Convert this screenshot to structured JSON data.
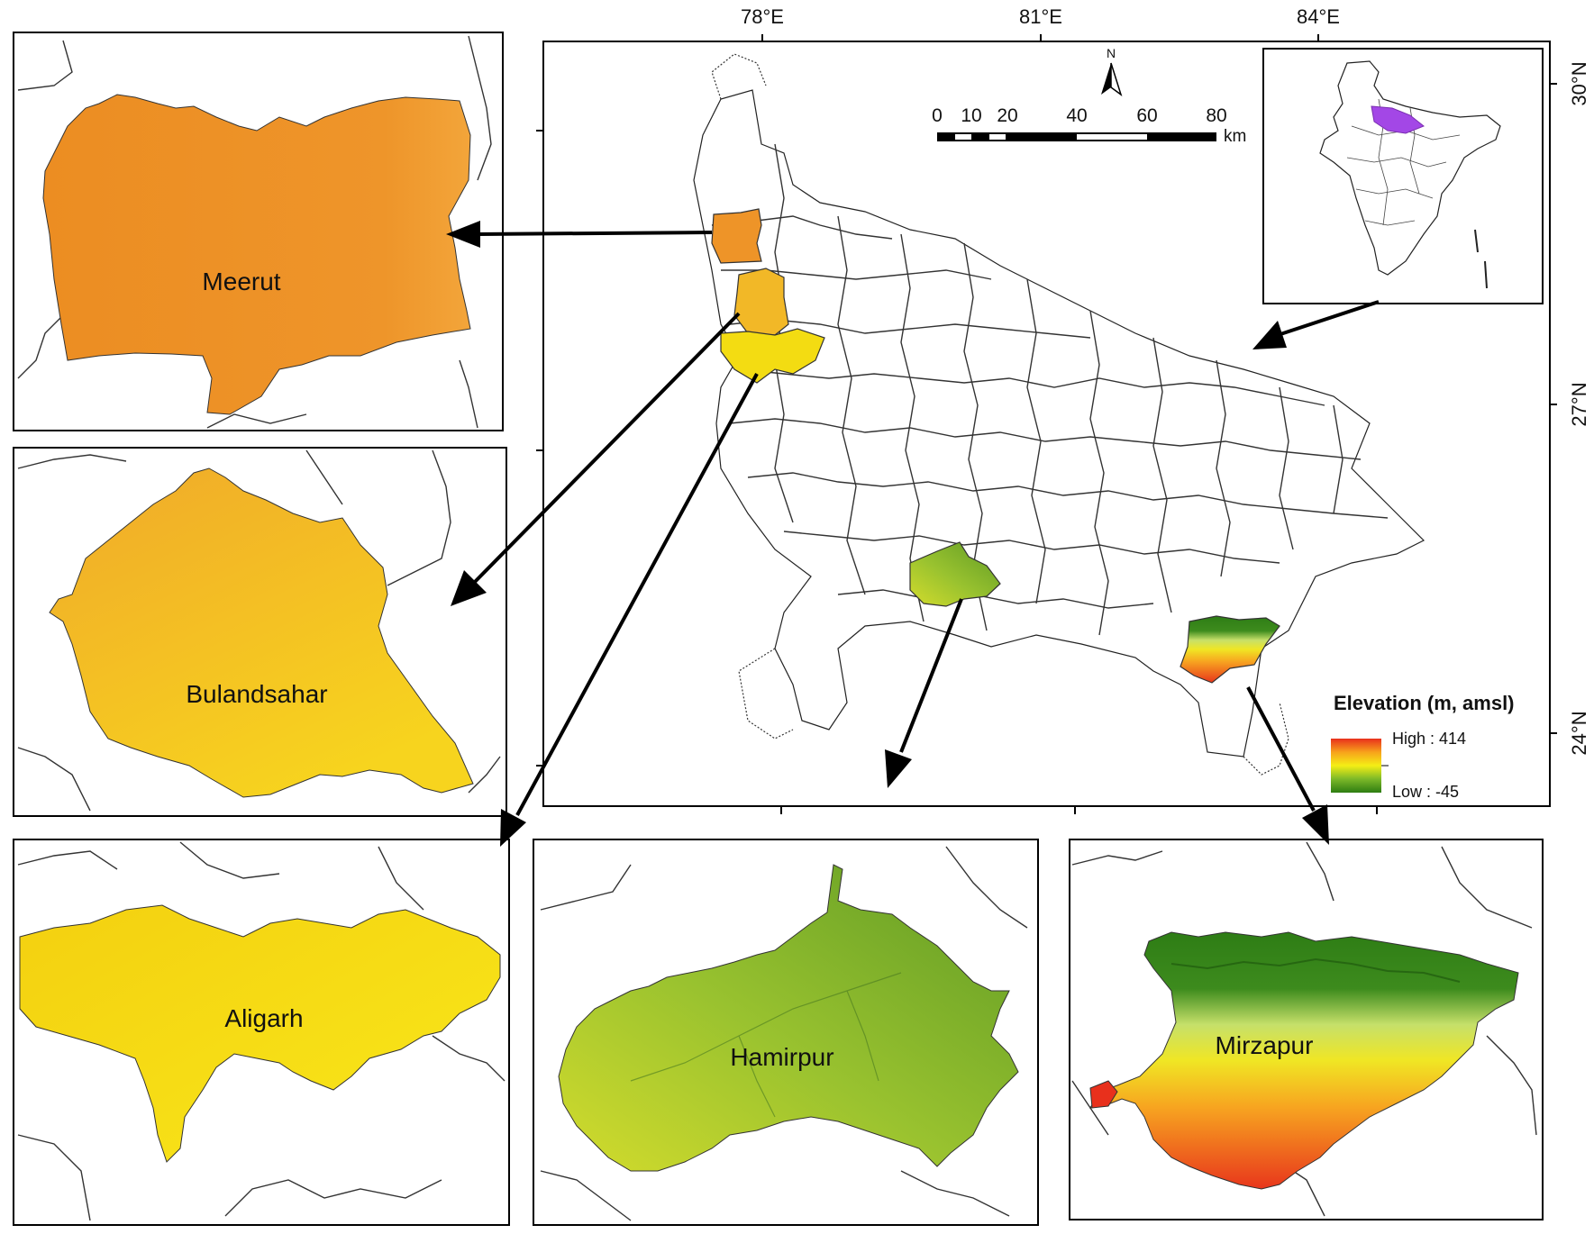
{
  "axes": {
    "longitudes": [
      "78°E",
      "81°E",
      "84°E"
    ],
    "latitudes": [
      "30°N",
      "27°N",
      "24°N"
    ]
  },
  "north_arrow": {
    "label": "N",
    "icon": "north-arrow-icon"
  },
  "scale_bar": {
    "ticks": [
      "0",
      "10",
      "20",
      "40",
      "60",
      "80"
    ],
    "unit": "km"
  },
  "legend": {
    "title": "Elevation (m, amsl)",
    "high_label": "High : 414",
    "low_label": "Low : -45",
    "high_value": 414,
    "low_value": -45,
    "colors": [
      "#e8301c",
      "#f7a21b",
      "#f5ee15",
      "#7cb828",
      "#2e7d12"
    ]
  },
  "inset_highlight_color": "#a347e6",
  "districts": [
    {
      "key": "meerut",
      "name": "Meerut",
      "color": "#ee9428"
    },
    {
      "key": "bulandsahar",
      "name": "Bulandsahar",
      "color": "#f2b827"
    },
    {
      "key": "aligarh",
      "name": "Aligarh",
      "color": "#f3dc12"
    },
    {
      "key": "hamirpur",
      "name": "Hamirpur",
      "color": "#8cb82e"
    },
    {
      "key": "mirzapur",
      "name": "Mirzapur",
      "color": "#3f8d1c"
    }
  ]
}
